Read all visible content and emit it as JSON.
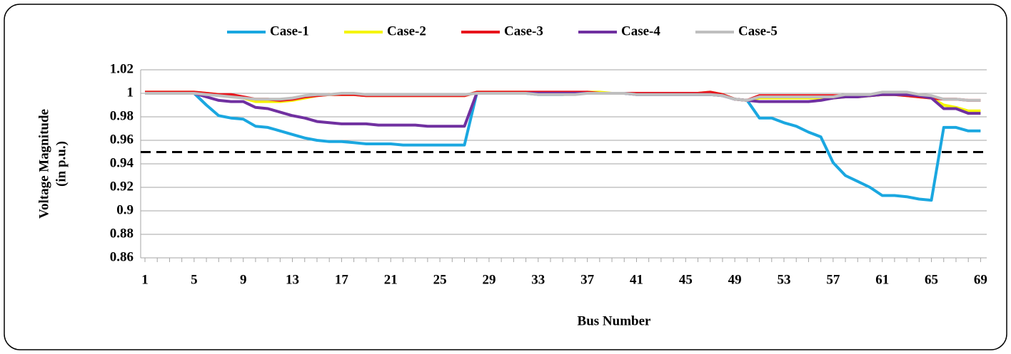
{
  "chart_data": {
    "type": "line",
    "x_label": "Bus Number",
    "y_label": [
      "Voltage Magnitude",
      "(in p.u.)"
    ],
    "x": [
      1,
      2,
      3,
      4,
      5,
      6,
      7,
      8,
      9,
      10,
      11,
      12,
      13,
      14,
      15,
      16,
      17,
      18,
      19,
      20,
      21,
      22,
      23,
      24,
      25,
      26,
      27,
      28,
      29,
      30,
      31,
      32,
      33,
      34,
      35,
      36,
      37,
      38,
      39,
      40,
      41,
      42,
      43,
      44,
      45,
      46,
      47,
      48,
      49,
      50,
      51,
      52,
      53,
      54,
      55,
      56,
      57,
      58,
      59,
      60,
      61,
      62,
      63,
      64,
      65,
      66,
      67,
      68,
      69
    ],
    "xlim": [
      0.65,
      69.5
    ],
    "xticks": [
      1,
      5,
      9,
      13,
      17,
      21,
      25,
      29,
      33,
      37,
      41,
      45,
      49,
      53,
      57,
      61,
      65,
      69
    ],
    "ylim": [
      0.86,
      1.02
    ],
    "yticks": [
      0.86,
      0.88,
      0.9,
      0.92,
      0.94,
      0.96,
      0.98,
      1,
      1.02
    ],
    "grid": true,
    "legend": "top",
    "reference_line": 0.95,
    "series": [
      {
        "name": "Case-1",
        "color": "#1aa7e0",
        "values": [
          1,
          1,
          1,
          1,
          1,
          0.99,
          0.981,
          0.979,
          0.978,
          0.972,
          0.971,
          0.968,
          0.965,
          0.962,
          0.96,
          0.959,
          0.959,
          0.958,
          0.957,
          0.957,
          0.957,
          0.956,
          0.956,
          0.956,
          0.956,
          0.956,
          0.956,
          1,
          1,
          1,
          1,
          1,
          0.999,
          0.999,
          0.999,
          1,
          1,
          1,
          1,
          1,
          0.999,
          0.999,
          0.999,
          0.999,
          0.999,
          0.999,
          0.999,
          0.998,
          0.995,
          0.994,
          0.979,
          0.979,
          0.975,
          0.972,
          0.967,
          0.963,
          0.941,
          0.93,
          0.925,
          0.92,
          0.913,
          0.913,
          0.912,
          0.91,
          0.909,
          0.971,
          0.971,
          0.968,
          0.968
        ]
      },
      {
        "name": "Case-2",
        "color": "#f5f500",
        "values": [
          1.001,
          1.001,
          1.001,
          1.001,
          1.001,
          1,
          0.999,
          0.998,
          0.996,
          0.993,
          0.993,
          0.993,
          0.994,
          0.996,
          0.998,
          0.999,
          0.999,
          0.999,
          0.998,
          0.998,
          0.998,
          0.998,
          0.998,
          0.998,
          0.998,
          0.998,
          0.998,
          1.001,
          1.001,
          1.001,
          1.001,
          1.001,
          1,
          1,
          1,
          1,
          1.001,
          1.001,
          1,
          1,
          1,
          1,
          1,
          1,
          1,
          1,
          1.001,
          0.999,
          0.995,
          0.994,
          0.996,
          0.996,
          0.996,
          0.996,
          0.996,
          0.996,
          0.996,
          0.997,
          0.997,
          0.998,
          0.999,
          0.999,
          0.998,
          0.997,
          0.996,
          0.99,
          0.988,
          0.985,
          0.985
        ]
      },
      {
        "name": "Case-3",
        "color": "#e8141c",
        "values": [
          1.001,
          1.001,
          1.001,
          1.001,
          1.001,
          1,
          0.999,
          0.999,
          0.997,
          0.995,
          0.995,
          0.994,
          0.995,
          0.997,
          0.998,
          0.999,
          0.999,
          0.999,
          0.998,
          0.998,
          0.998,
          0.998,
          0.998,
          0.998,
          0.998,
          0.998,
          0.998,
          1.001,
          1.001,
          1.001,
          1.001,
          1.001,
          1.001,
          1.001,
          1.001,
          1.001,
          1.001,
          1,
          1,
          1,
          1,
          1,
          1,
          1,
          1,
          1,
          1.001,
          0.999,
          0.995,
          0.994,
          0.998,
          0.998,
          0.998,
          0.998,
          0.998,
          0.998,
          0.998,
          0.998,
          0.998,
          0.998,
          0.999,
          0.999,
          0.998,
          0.997,
          0.996,
          0.995,
          0.995,
          0.994,
          0.994
        ]
      },
      {
        "name": "Case-4",
        "color": "#7030a0",
        "values": [
          1,
          1,
          1,
          1,
          1,
          0.997,
          0.994,
          0.993,
          0.993,
          0.988,
          0.987,
          0.984,
          0.981,
          0.979,
          0.976,
          0.975,
          0.974,
          0.974,
          0.974,
          0.973,
          0.973,
          0.973,
          0.973,
          0.972,
          0.972,
          0.972,
          0.972,
          1,
          1,
          1,
          1,
          1,
          1,
          1,
          1,
          1,
          1,
          1,
          1,
          1,
          0.999,
          0.999,
          0.999,
          0.999,
          0.999,
          0.999,
          0.999,
          0.998,
          0.995,
          0.994,
          0.993,
          0.993,
          0.993,
          0.993,
          0.993,
          0.994,
          0.996,
          0.997,
          0.997,
          0.998,
          0.999,
          0.999,
          0.999,
          0.998,
          0.996,
          0.987,
          0.987,
          0.983,
          0.983
        ]
      },
      {
        "name": "Case-5",
        "color": "#bfbfbf",
        "values": [
          1,
          1,
          1,
          1,
          1,
          0.999,
          0.998,
          0.997,
          0.996,
          0.995,
          0.995,
          0.995,
          0.996,
          0.998,
          0.999,
          0.999,
          1,
          1,
          0.999,
          0.999,
          0.999,
          0.999,
          0.999,
          0.999,
          0.999,
          0.999,
          0.999,
          1,
          1,
          1,
          1,
          1,
          0.999,
          0.999,
          0.999,
          0.999,
          1,
          1,
          1,
          1,
          0.999,
          0.999,
          0.999,
          0.999,
          0.999,
          0.999,
          0.999,
          0.998,
          0.995,
          0.994,
          0.997,
          0.997,
          0.997,
          0.997,
          0.997,
          0.997,
          0.997,
          0.999,
          0.999,
          0.999,
          1.001,
          1.001,
          1.001,
          0.999,
          0.998,
          0.995,
          0.995,
          0.994,
          0.994
        ]
      }
    ]
  }
}
